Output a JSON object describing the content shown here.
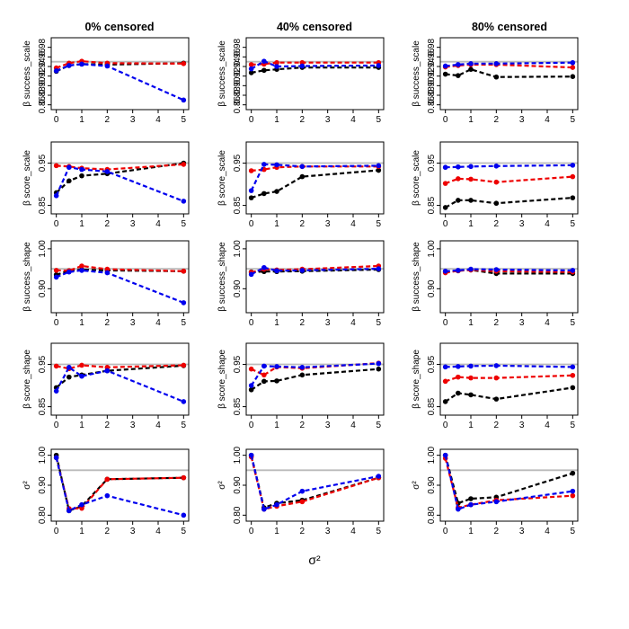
{
  "figure": {
    "column_titles": [
      "0% censored",
      "40% censored",
      "80% censored"
    ],
    "row_ylabels": [
      "β success_scale",
      "β score_scale",
      "β success_shape",
      "β score_shape",
      "σ²"
    ],
    "xlabel": "σ²",
    "xticks": [
      0,
      1,
      2,
      3,
      4,
      5
    ],
    "reference_line": 0.95,
    "reference_color": "#bbbbbb"
  },
  "series_styles": [
    {
      "name": "black",
      "color": "#000000"
    },
    {
      "name": "red",
      "color": "#ee0000"
    },
    {
      "name": "blue",
      "color": "#0000ee"
    }
  ],
  "chart_data": [
    {
      "row": 0,
      "col": 0,
      "type": "line",
      "title": "0% censored",
      "ylabel": "β success_scale",
      "ylim": [
        0.85,
        1.0
      ],
      "yticks": [
        "0.86",
        "0.88",
        "0.90",
        "0.92",
        "0.94",
        "0.96",
        "0.98"
      ],
      "x": [
        0,
        0.5,
        1,
        2,
        5
      ],
      "series": [
        {
          "name": "black",
          "values": [
            0.93,
            0.942,
            0.945,
            0.944,
            0.947
          ]
        },
        {
          "name": "red",
          "values": [
            0.937,
            0.947,
            0.951,
            0.947,
            0.946
          ]
        },
        {
          "name": "blue",
          "values": [
            0.931,
            0.942,
            0.945,
            0.941,
            0.87
          ]
        }
      ]
    },
    {
      "row": 0,
      "col": 1,
      "type": "line",
      "title": "40% censored",
      "ylabel": "β success_scale",
      "ylim": [
        0.85,
        1.0
      ],
      "yticks": [
        "0.86",
        "0.88",
        "0.90",
        "0.92",
        "0.94",
        "0.96",
        "0.98"
      ],
      "x": [
        0,
        0.5,
        1,
        2,
        5
      ],
      "series": [
        {
          "name": "black",
          "values": [
            0.927,
            0.932,
            0.934,
            0.938,
            0.938
          ]
        },
        {
          "name": "red",
          "values": [
            0.944,
            0.945,
            0.948,
            0.948,
            0.948
          ]
        },
        {
          "name": "blue",
          "values": [
            0.935,
            0.951,
            0.94,
            0.941,
            0.942
          ]
        }
      ]
    },
    {
      "row": 0,
      "col": 2,
      "type": "line",
      "title": "80% censored",
      "ylabel": "β success_scale",
      "ylim": [
        0.85,
        1.0
      ],
      "yticks": [
        "0.86",
        "0.88",
        "0.90",
        "0.92",
        "0.94",
        "0.96",
        "0.98"
      ],
      "x": [
        0,
        0.5,
        1,
        2,
        5
      ],
      "series": [
        {
          "name": "black",
          "values": [
            0.924,
            0.921,
            0.934,
            0.918,
            0.919
          ]
        },
        {
          "name": "red",
          "values": [
            0.939,
            0.942,
            0.944,
            0.944,
            0.938
          ]
        },
        {
          "name": "blue",
          "values": [
            0.941,
            0.944,
            0.946,
            0.946,
            0.948
          ]
        }
      ]
    },
    {
      "row": 1,
      "col": 0,
      "type": "line",
      "title": "0% censored",
      "ylabel": "β score_scale",
      "ylim": [
        0.83,
        1.0
      ],
      "yticks": [
        "0.85",
        "0.95"
      ],
      "x": [
        0,
        0.5,
        1,
        2,
        5
      ],
      "series": [
        {
          "name": "black",
          "values": [
            0.88,
            0.908,
            0.92,
            0.925,
            0.95
          ]
        },
        {
          "name": "red",
          "values": [
            0.944,
            0.942,
            0.938,
            0.935,
            0.947
          ]
        },
        {
          "name": "blue",
          "values": [
            0.873,
            0.94,
            0.935,
            0.93,
            0.86
          ]
        }
      ]
    },
    {
      "row": 1,
      "col": 1,
      "type": "line",
      "title": "40% censored",
      "ylabel": "β score_scale",
      "ylim": [
        0.83,
        1.0
      ],
      "yticks": [
        "0.85",
        "0.95"
      ],
      "x": [
        0,
        0.5,
        1,
        2,
        5
      ],
      "series": [
        {
          "name": "black",
          "values": [
            0.868,
            0.878,
            0.883,
            0.918,
            0.933
          ]
        },
        {
          "name": "red",
          "values": [
            0.932,
            0.935,
            0.94,
            0.942,
            0.942
          ]
        },
        {
          "name": "blue",
          "values": [
            0.885,
            0.947,
            0.946,
            0.942,
            0.944
          ]
        }
      ]
    },
    {
      "row": 1,
      "col": 2,
      "type": "line",
      "title": "80% censored",
      "ylabel": "β score_scale",
      "ylim": [
        0.83,
        1.0
      ],
      "yticks": [
        "0.85",
        "0.95"
      ],
      "x": [
        0,
        0.5,
        1,
        2,
        5
      ],
      "series": [
        {
          "name": "black",
          "values": [
            0.845,
            0.862,
            0.862,
            0.855,
            0.868
          ]
        },
        {
          "name": "red",
          "values": [
            0.902,
            0.913,
            0.912,
            0.905,
            0.918
          ]
        },
        {
          "name": "blue",
          "values": [
            0.94,
            0.941,
            0.942,
            0.943,
            0.945
          ]
        }
      ]
    },
    {
      "row": 2,
      "col": 0,
      "type": "line",
      "title": "0% censored",
      "ylabel": "β success_shape",
      "ylim": [
        0.84,
        1.02
      ],
      "yticks": [
        "0.90",
        "1.00"
      ],
      "x": [
        0,
        0.5,
        1,
        2,
        5
      ],
      "series": [
        {
          "name": "black",
          "values": [
            0.935,
            0.945,
            0.948,
            0.946,
            0.944
          ]
        },
        {
          "name": "red",
          "values": [
            0.946,
            0.945,
            0.957,
            0.949,
            0.944
          ]
        },
        {
          "name": "blue",
          "values": [
            0.929,
            0.942,
            0.946,
            0.94,
            0.865
          ]
        }
      ]
    },
    {
      "row": 2,
      "col": 1,
      "type": "line",
      "title": "40% censored",
      "ylabel": "β success_shape",
      "ylim": [
        0.84,
        1.02
      ],
      "yticks": [
        "0.90",
        "1.00"
      ],
      "x": [
        0,
        0.5,
        1,
        2,
        5
      ],
      "series": [
        {
          "name": "black",
          "values": [
            0.942,
            0.943,
            0.943,
            0.944,
            0.948
          ]
        },
        {
          "name": "red",
          "values": [
            0.941,
            0.949,
            0.947,
            0.949,
            0.957
          ]
        },
        {
          "name": "blue",
          "values": [
            0.936,
            0.953,
            0.945,
            0.946,
            0.95
          ]
        }
      ]
    },
    {
      "row": 2,
      "col": 2,
      "type": "line",
      "title": "80% censored",
      "ylabel": "β success_shape",
      "ylim": [
        0.84,
        1.02
      ],
      "yticks": [
        "0.90",
        "1.00"
      ],
      "x": [
        0,
        0.5,
        1,
        2,
        5
      ],
      "series": [
        {
          "name": "black",
          "values": [
            0.943,
            0.945,
            0.947,
            0.938,
            0.938
          ]
        },
        {
          "name": "red",
          "values": [
            0.94,
            0.945,
            0.947,
            0.944,
            0.942
          ]
        },
        {
          "name": "blue",
          "values": [
            0.944,
            0.946,
            0.949,
            0.948,
            0.946
          ]
        }
      ]
    },
    {
      "row": 3,
      "col": 0,
      "type": "line",
      "title": "0% censored",
      "ylabel": "β score_shape",
      "ylim": [
        0.83,
        1.0
      ],
      "yticks": [
        "0.85",
        "0.95"
      ],
      "x": [
        0,
        0.5,
        1,
        2,
        5
      ],
      "series": [
        {
          "name": "black",
          "values": [
            0.895,
            0.92,
            0.925,
            0.935,
            0.947
          ]
        },
        {
          "name": "red",
          "values": [
            0.946,
            0.94,
            0.948,
            0.943,
            0.948
          ]
        },
        {
          "name": "blue",
          "values": [
            0.887,
            0.943,
            0.922,
            0.935,
            0.862
          ]
        }
      ]
    },
    {
      "row": 3,
      "col": 1,
      "type": "line",
      "title": "40% censored",
      "ylabel": "β score_shape",
      "ylim": [
        0.83,
        1.0
      ],
      "yticks": [
        "0.85",
        "0.95"
      ],
      "x": [
        0,
        0.5,
        1,
        2,
        5
      ],
      "series": [
        {
          "name": "black",
          "values": [
            0.89,
            0.91,
            0.911,
            0.925,
            0.939
          ]
        },
        {
          "name": "red",
          "values": [
            0.939,
            0.925,
            0.944,
            0.941,
            0.953
          ]
        },
        {
          "name": "blue",
          "values": [
            0.9,
            0.946,
            0.945,
            0.943,
            0.952
          ]
        }
      ]
    },
    {
      "row": 3,
      "col": 2,
      "type": "line",
      "title": "80% censored",
      "ylabel": "β score_shape",
      "ylim": [
        0.83,
        1.0
      ],
      "yticks": [
        "0.85",
        "0.95"
      ],
      "x": [
        0,
        0.5,
        1,
        2,
        5
      ],
      "series": [
        {
          "name": "black",
          "values": [
            0.862,
            0.882,
            0.878,
            0.868,
            0.895
          ]
        },
        {
          "name": "red",
          "values": [
            0.91,
            0.92,
            0.918,
            0.918,
            0.924
          ]
        },
        {
          "name": "blue",
          "values": [
            0.944,
            0.945,
            0.946,
            0.947,
            0.944
          ]
        }
      ]
    },
    {
      "row": 4,
      "col": 0,
      "type": "line",
      "title": "0% censored",
      "ylabel": "σ²",
      "ylim": [
        0.78,
        1.02
      ],
      "yticks": [
        "0.80",
        "0.90",
        "1.00"
      ],
      "x": [
        0,
        0.5,
        1,
        2,
        5
      ],
      "series": [
        {
          "name": "black",
          "values": [
            1.0,
            0.815,
            0.83,
            0.92,
            0.925
          ]
        },
        {
          "name": "red",
          "values": [
            0.992,
            0.822,
            0.823,
            0.92,
            0.925
          ]
        },
        {
          "name": "blue",
          "values": [
            0.992,
            0.815,
            0.835,
            0.865,
            0.8
          ]
        }
      ]
    },
    {
      "row": 4,
      "col": 1,
      "type": "line",
      "title": "40% censored",
      "ylabel": "σ²",
      "ylim": [
        0.78,
        1.02
      ],
      "yticks": [
        "0.80",
        "0.90",
        "1.00"
      ],
      "x": [
        0,
        0.5,
        1,
        2,
        5
      ],
      "series": [
        {
          "name": "black",
          "values": [
            1.0,
            0.825,
            0.84,
            0.85,
            0.925
          ]
        },
        {
          "name": "red",
          "values": [
            0.995,
            0.82,
            0.83,
            0.845,
            0.925
          ]
        },
        {
          "name": "blue",
          "values": [
            1.0,
            0.82,
            0.835,
            0.88,
            0.93
          ]
        }
      ]
    },
    {
      "row": 4,
      "col": 2,
      "type": "line",
      "title": "80% censored",
      "ylabel": "σ²",
      "ylim": [
        0.78,
        1.02
      ],
      "yticks": [
        "0.80",
        "0.90",
        "1.00"
      ],
      "x": [
        0,
        0.5,
        1,
        2,
        5
      ],
      "series": [
        {
          "name": "black",
          "values": [
            1.0,
            0.84,
            0.855,
            0.86,
            0.94
          ]
        },
        {
          "name": "red",
          "values": [
            0.99,
            0.825,
            0.835,
            0.85,
            0.865
          ]
        },
        {
          "name": "blue",
          "values": [
            1.0,
            0.82,
            0.835,
            0.845,
            0.88
          ]
        }
      ]
    }
  ]
}
